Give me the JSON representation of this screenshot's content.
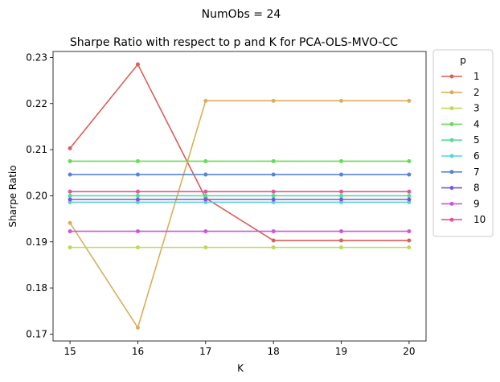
{
  "suptitle": "NumObs = 24",
  "chart_data": {
    "type": "line",
    "title": "Sharpe Ratio with respect to p and K for PCA-OLS-MVO-CC",
    "xlabel": "K",
    "ylabel": "Sharpe Ratio",
    "x": [
      15,
      16,
      17,
      18,
      19,
      20
    ],
    "xlim": [
      14.75,
      20.25
    ],
    "ylim": [
      0.1685,
      0.2313
    ],
    "xticks": [
      15,
      16,
      17,
      18,
      19,
      20
    ],
    "yticks": [
      0.17,
      0.18,
      0.19,
      0.2,
      0.21,
      0.22,
      0.23
    ],
    "ytick_labels": [
      "0.17",
      "0.18",
      "0.19",
      "0.20",
      "0.21",
      "0.22",
      "0.23"
    ],
    "legend_title": "p",
    "legend_placement": "outside-right-top",
    "grid": false,
    "series": [
      {
        "name": "1",
        "color": "#db5f57",
        "values": [
          0.2103,
          0.2285,
          0.1995,
          0.1903,
          0.1903,
          0.1903
        ]
      },
      {
        "name": "2",
        "color": "#dbae57",
        "values": [
          0.1941,
          0.1714,
          0.2206,
          0.2206,
          0.2206,
          0.2206
        ]
      },
      {
        "name": "3",
        "color": "#b9db57",
        "values": [
          0.1888,
          0.1888,
          0.1888,
          0.1888,
          0.1888,
          0.1888
        ]
      },
      {
        "name": "4",
        "color": "#69db57",
        "values": [
          0.2075,
          0.2075,
          0.2075,
          0.2075,
          0.2075,
          0.2075
        ]
      },
      {
        "name": "5",
        "color": "#57db94",
        "values": [
          0.2,
          0.2,
          0.2,
          0.2,
          0.2,
          0.2
        ]
      },
      {
        "name": "6",
        "color": "#57d3db",
        "values": [
          0.1986,
          0.1986,
          0.1986,
          0.1986,
          0.1986,
          0.1986
        ]
      },
      {
        "name": "7",
        "color": "#5784db",
        "values": [
          0.2046,
          0.2046,
          0.2046,
          0.2046,
          0.2046,
          0.2046
        ]
      },
      {
        "name": "8",
        "color": "#7957db",
        "values": [
          0.1992,
          0.1992,
          0.1992,
          0.1992,
          0.1992,
          0.1992
        ]
      },
      {
        "name": "9",
        "color": "#c957db",
        "values": [
          0.1923,
          0.1923,
          0.1923,
          0.1923,
          0.1923,
          0.1923
        ]
      },
      {
        "name": "10",
        "color": "#db579e",
        "values": [
          0.2009,
          0.2009,
          0.2009,
          0.2009,
          0.2009,
          0.2009
        ]
      }
    ]
  }
}
